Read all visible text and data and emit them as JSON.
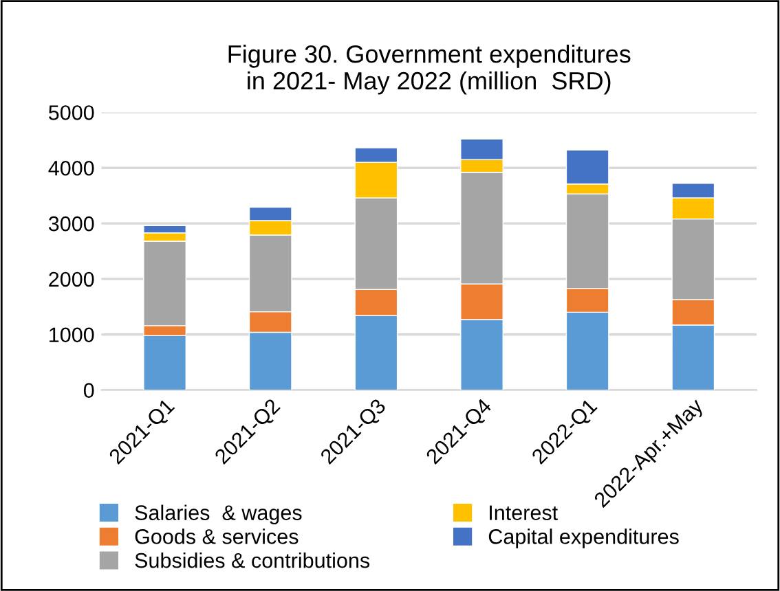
{
  "chart_data": {
    "type": "bar",
    "stacked": true,
    "title": "Figure 30. Government expenditures\nin 2021- May 2022 (million  SRD)",
    "categories": [
      "2021-Q1",
      "2021-Q2",
      "2021-Q3",
      "2021-Q4",
      "2022-Q1",
      "2022-Apr.+May"
    ],
    "series": [
      {
        "name": "Salaries  & wages",
        "color": "#5b9bd5",
        "values": [
          980,
          1040,
          1340,
          1270,
          1400,
          1170
        ]
      },
      {
        "name": "Goods & services",
        "color": "#ed7d31",
        "values": [
          180,
          370,
          470,
          640,
          430,
          460
        ]
      },
      {
        "name": "Subsidies & contributions",
        "color": "#a5a5a5",
        "values": [
          1520,
          1380,
          1650,
          2010,
          1700,
          1450
        ]
      },
      {
        "name": "Interest",
        "color": "#ffc000",
        "values": [
          150,
          260,
          640,
          230,
          180,
          380
        ]
      },
      {
        "name": "Capital expenditures",
        "color": "#4472c4",
        "values": [
          130,
          240,
          260,
          370,
          610,
          260
        ]
      }
    ],
    "ylim": [
      0,
      5000
    ],
    "yticks": [
      0,
      1000,
      2000,
      3000,
      4000,
      5000
    ],
    "grid": "y",
    "legend": "bottom"
  }
}
